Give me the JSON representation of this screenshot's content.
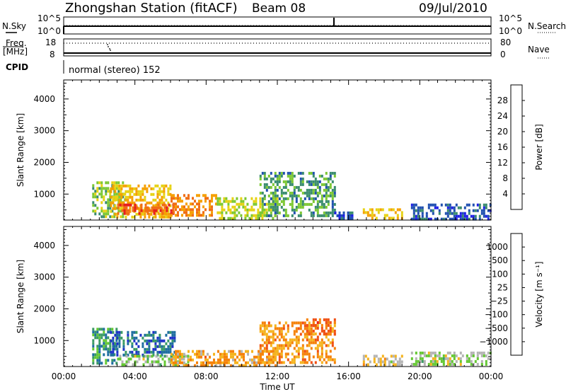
{
  "header": {
    "station": "Zhongshan Station (fitACF)",
    "beam": "Beam 08",
    "date": "09/Jul/2010"
  },
  "top_panels": {
    "nsky_label": "N.Sky",
    "nsky_ticks": [
      "10^5",
      "10^0"
    ],
    "nsearch_label": "N.Search",
    "nsearch_ticks": [
      "10^5",
      "10^0"
    ],
    "freq_label_line1": "Freq.",
    "freq_label_line2": "[MHz]",
    "freq_ticks": [
      "18",
      "8"
    ],
    "nave_label": "Nave",
    "nave_ticks": [
      "80",
      "0"
    ],
    "cpid_label": "CPID",
    "cpid_text": "normal (stereo) 152"
  },
  "chart_data": [
    {
      "type": "heatmap",
      "title": "",
      "xlabel": "Time UT",
      "ylabel": "Slant Range [km]",
      "x_ticks": [
        "00:00",
        "04:00",
        "08:00",
        "12:00",
        "16:00",
        "20:00",
        "00:00"
      ],
      "x_range_hours": [
        0,
        24
      ],
      "y_ticks": [
        "1000",
        "2000",
        "3000",
        "4000"
      ],
      "ylim": [
        180,
        4600
      ],
      "grid": false,
      "colorbar": {
        "label": "Power [dB]",
        "ticks": [
          "4",
          "8",
          "12",
          "16",
          "20",
          "24",
          "28"
        ],
        "range": [
          0,
          32
        ],
        "colors": [
          "#1e1ee6",
          "#2050b0",
          "#3a8c6e",
          "#7cc832",
          "#e6d214",
          "#f5a000",
          "#f06e14",
          "#e61e1e"
        ]
      },
      "regions": [
        {
          "t0": 1.6,
          "t1": 3.4,
          "r0": 300,
          "r1": 1400,
          "v": 14
        },
        {
          "t0": 2.6,
          "t1": 6.0,
          "r0": 300,
          "r1": 1300,
          "v": 20
        },
        {
          "t0": 3.0,
          "t1": 6.2,
          "r0": 350,
          "r1": 700,
          "v": 27
        },
        {
          "t0": 6.0,
          "t1": 8.6,
          "r0": 300,
          "r1": 1000,
          "v": 24
        },
        {
          "t0": 8.6,
          "t1": 12.0,
          "r0": 250,
          "r1": 900,
          "v": 16
        },
        {
          "t0": 11.0,
          "t1": 15.2,
          "r0": 350,
          "r1": 1700,
          "v": 11
        },
        {
          "t0": 15.2,
          "t1": 16.2,
          "r0": 200,
          "r1": 450,
          "v": 6
        },
        {
          "t0": 16.8,
          "t1": 19.0,
          "r0": 200,
          "r1": 550,
          "v": 20
        },
        {
          "t0": 19.5,
          "t1": 24.0,
          "r0": 250,
          "r1": 700,
          "v": 6
        }
      ]
    },
    {
      "type": "heatmap",
      "title": "",
      "xlabel": "Time UT",
      "ylabel": "Slant Range [km]",
      "x_ticks": [
        "00:00",
        "04:00",
        "08:00",
        "12:00",
        "16:00",
        "20:00",
        "00:00"
      ],
      "x_range_hours": [
        0,
        24
      ],
      "y_ticks": [
        "1000",
        "2000",
        "3000",
        "4000"
      ],
      "ylim": [
        180,
        4600
      ],
      "grid": false,
      "colorbar": {
        "label": "Velocity [m s^-1]",
        "ticks": [
          "1000",
          "500",
          "100",
          "25",
          "−25",
          "−100",
          "−500",
          "−1000"
        ],
        "range": [
          1300,
          -1300
        ],
        "colors": [
          "#1e32c8",
          "#1e6ea0",
          "#3a9a64",
          "#64c832",
          "#b4b4b4",
          "#f5b41e",
          "#f5820a",
          "#f05014",
          "#e61e1e"
        ]
      },
      "regions": [
        {
          "t0": 1.6,
          "t1": 3.0,
          "r0": 300,
          "r1": 1400,
          "v": 600
        },
        {
          "t0": 2.6,
          "t1": 6.2,
          "r0": 500,
          "r1": 1300,
          "v": 900
        },
        {
          "t0": 3.0,
          "t1": 7.0,
          "r0": 250,
          "r1": 550,
          "v": 150
        },
        {
          "t0": 6.0,
          "t1": 12.0,
          "r0": 250,
          "r1": 700,
          "v": -400
        },
        {
          "t0": 11.0,
          "t1": 15.2,
          "r0": 300,
          "r1": 1600,
          "v": -500
        },
        {
          "t0": 13.5,
          "t1": 15.2,
          "r0": 1200,
          "r1": 1700,
          "v": -700
        },
        {
          "t0": 16.8,
          "t1": 19.0,
          "r0": 200,
          "r1": 550,
          "v": -150
        },
        {
          "t0": 19.5,
          "t1": 24.0,
          "r0": 250,
          "r1": 650,
          "v": 120
        }
      ]
    }
  ]
}
